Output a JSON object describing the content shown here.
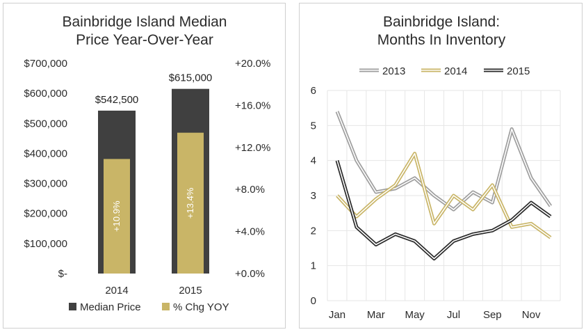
{
  "colors": {
    "median": "#404040",
    "yoy": "#c9b567",
    "s2013": "#9e9e9e",
    "s2014": "#c9b567",
    "s2015": "#2a2a2a",
    "grid": "#e6e6e6"
  },
  "chart_data": [
    {
      "type": "bar",
      "title_lines": [
        "Bainbridge Island Median",
        "Price Year-Over-Year"
      ],
      "categories": [
        "2014",
        "2015"
      ],
      "series": [
        {
          "name": "Median Price",
          "axis": "left",
          "values": [
            542500,
            615000
          ],
          "labels": [
            "$542,500",
            "$615,000"
          ]
        },
        {
          "name": "% Chg YOY",
          "axis": "right",
          "values": [
            10.9,
            13.4
          ],
          "labels": [
            "+10.9%",
            "+13.4%"
          ]
        }
      ],
      "left_axis": {
        "min": 0,
        "max": 700000,
        "ticks": [
          "$-",
          "$100,000",
          "$200,000",
          "$300,000",
          "$400,000",
          "$500,000",
          "$600,000",
          "$700,000"
        ]
      },
      "right_axis": {
        "min": 0,
        "max": 20,
        "ticks": [
          "+0.0%",
          "+4.0%",
          "+8.0%",
          "+12.0%",
          "+16.0%",
          "+20.0%"
        ]
      },
      "legend_position": "bottom",
      "grid": false
    },
    {
      "type": "line",
      "title_lines": [
        "Bainbridge Island:",
        "Months In Inventory"
      ],
      "months": 12,
      "x_tick_labels": [
        "Jan",
        "Mar",
        "May",
        "Jul",
        "Sep",
        "Nov"
      ],
      "ylim": [
        0,
        6
      ],
      "y_ticks": [
        "0",
        "1",
        "2",
        "3",
        "4",
        "5",
        "6"
      ],
      "series": [
        {
          "name": "2013",
          "values": [
            5.4,
            4.0,
            3.1,
            3.2,
            3.5,
            3.0,
            2.6,
            3.1,
            2.8,
            4.9,
            3.5,
            2.7
          ]
        },
        {
          "name": "2014",
          "values": [
            3.0,
            2.4,
            2.9,
            3.3,
            4.2,
            2.2,
            3.0,
            2.6,
            3.3,
            2.1,
            2.2,
            1.8
          ]
        },
        {
          "name": "2015",
          "values": [
            4.0,
            2.1,
            1.6,
            1.9,
            1.7,
            1.2,
            1.7,
            1.9,
            2.0,
            2.3,
            2.8,
            2.4
          ]
        }
      ],
      "legend_position": "top",
      "grid": true
    }
  ]
}
